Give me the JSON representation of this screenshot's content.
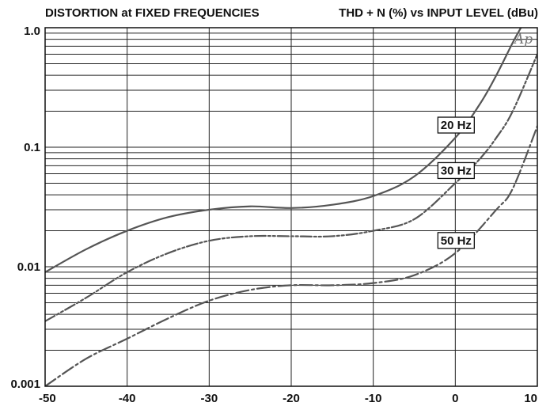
{
  "chart_data": {
    "type": "line",
    "title": "DISTORTION at FIXED FREQUENCIES",
    "subtitle": "THD + N (%) vs INPUT LEVEL (dBu)",
    "logo": "Ap",
    "x_scale": "linear",
    "y_scale": "log",
    "xlim": [
      -50,
      10
    ],
    "ylim": [
      0.001,
      1.0
    ],
    "x_ticks": [
      -50,
      -40,
      -30,
      -20,
      -10,
      0,
      10
    ],
    "x_tick_labels": [
      "-50",
      "-40",
      "-30",
      "-20",
      "-10",
      "0",
      "10"
    ],
    "y_ticks": [
      0.001,
      0.01,
      0.1,
      1.0
    ],
    "y_tick_labels": [
      "0.001",
      "0.01",
      "0.1",
      "1.0"
    ],
    "grid": true,
    "series": [
      {
        "name": "20 Hz",
        "line_style": "solid",
        "color": "#555555",
        "x": [
          -50,
          -45,
          -40,
          -35,
          -30,
          -25,
          -20,
          -15,
          -10,
          -5,
          0,
          3,
          5,
          7,
          8
        ],
        "y": [
          0.009,
          0.014,
          0.02,
          0.026,
          0.03,
          0.032,
          0.031,
          0.033,
          0.039,
          0.057,
          0.12,
          0.23,
          0.4,
          0.75,
          1.0
        ]
      },
      {
        "name": "30 Hz",
        "line_style": "dash-dot-dot",
        "color": "#555555",
        "x": [
          -50,
          -45,
          -40,
          -35,
          -30,
          -25,
          -20,
          -15,
          -10,
          -5,
          0,
          3,
          5,
          7,
          10
        ],
        "y": [
          0.0035,
          0.0055,
          0.009,
          0.013,
          0.0165,
          0.018,
          0.018,
          0.018,
          0.02,
          0.025,
          0.05,
          0.08,
          0.12,
          0.2,
          0.6
        ]
      },
      {
        "name": "50 Hz",
        "line_style": "dash-dot",
        "color": "#555555",
        "x": [
          -50,
          -45,
          -40,
          -35,
          -30,
          -25,
          -20,
          -15,
          -10,
          -5,
          0,
          5,
          7,
          10
        ],
        "y": [
          0.001,
          0.0017,
          0.0025,
          0.0037,
          0.0052,
          0.0064,
          0.007,
          0.007,
          0.0073,
          0.0085,
          0.013,
          0.03,
          0.045,
          0.15
        ]
      }
    ]
  }
}
